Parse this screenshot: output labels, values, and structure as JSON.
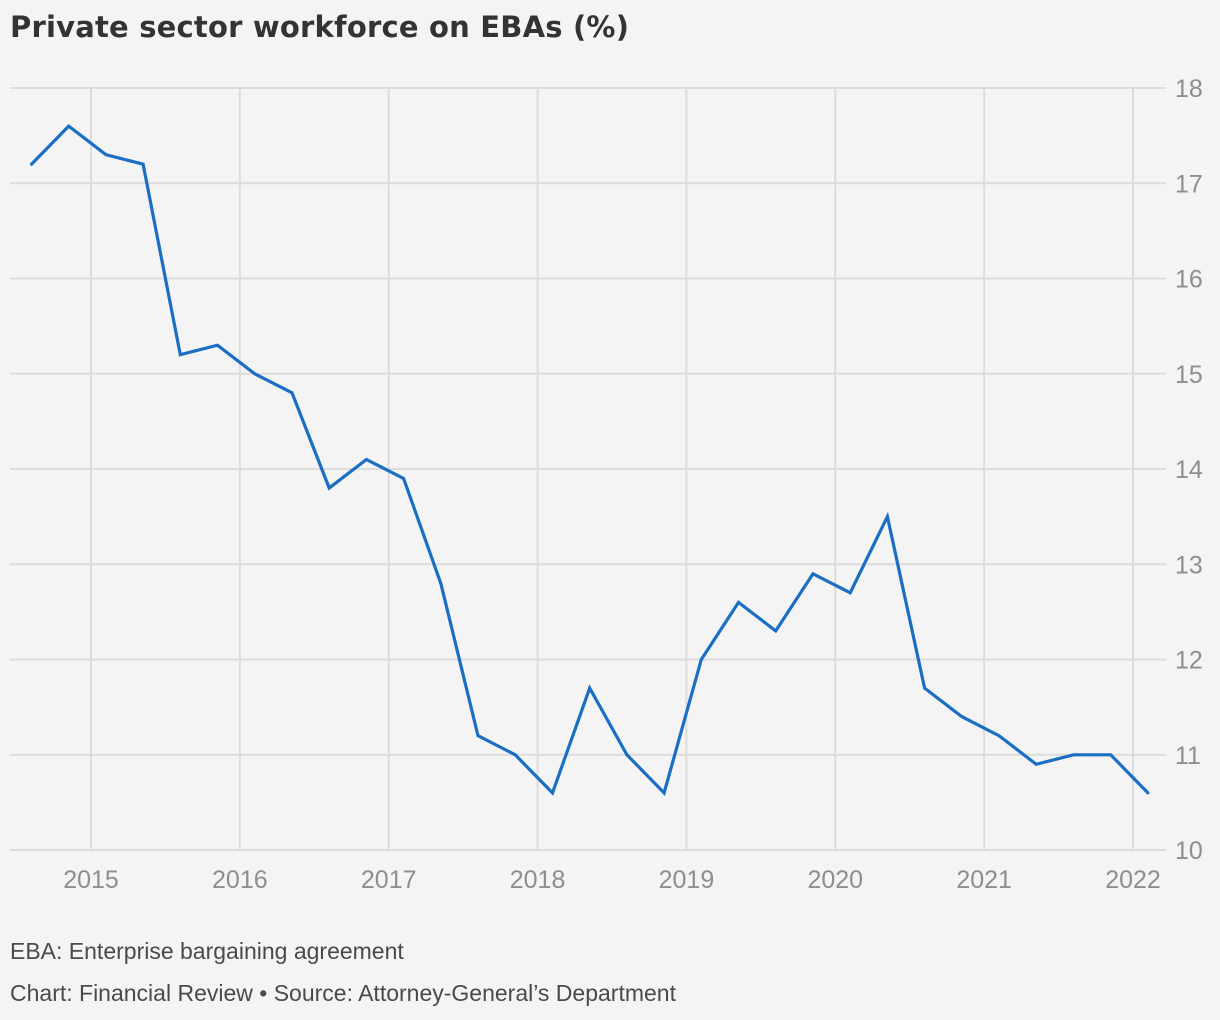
{
  "chart_data": {
    "type": "line",
    "title": "Private sector workforce on EBAs (%)",
    "xlabel": "",
    "ylabel": "",
    "x_axis": {
      "ticks": [
        2015,
        2016,
        2017,
        2018,
        2019,
        2020,
        2021,
        2022
      ],
      "tick_labels": [
        "2015",
        "2016",
        "2017",
        "2018",
        "2019",
        "2020",
        "2021",
        "2022"
      ]
    },
    "y_axis": {
      "ticks": [
        10,
        11,
        12,
        13,
        14,
        15,
        16,
        17,
        18
      ],
      "tick_labels": [
        "10",
        "11",
        "12",
        "13",
        "14",
        "15",
        "16",
        "17",
        "18"
      ],
      "position": "right"
    },
    "ylim": [
      10,
      18
    ],
    "grid": true,
    "legend": "none",
    "line_color": "#1a6ec4",
    "series": [
      {
        "x": [
          2014.6,
          2014.85,
          2015.1,
          2015.35,
          2015.6,
          2015.85,
          2016.1,
          2016.35,
          2016.6,
          2016.85,
          2017.1,
          2017.35,
          2017.6,
          2017.85,
          2018.1,
          2018.35,
          2018.6,
          2018.85,
          2019.1,
          2019.35,
          2019.6,
          2019.85,
          2020.1,
          2020.35,
          2020.6,
          2020.85,
          2021.1,
          2021.35,
          2021.6,
          2021.85,
          2022.1
        ],
        "values": [
          17.2,
          17.6,
          17.3,
          17.2,
          15.2,
          15.3,
          15.0,
          14.8,
          13.8,
          14.1,
          13.9,
          12.8,
          11.2,
          11.0,
          10.6,
          11.7,
          11.0,
          10.6,
          12.0,
          12.6,
          12.3,
          12.9,
          12.7,
          13.5,
          11.7,
          11.4,
          11.2,
          10.9,
          11.0,
          11.0,
          10.6
        ]
      }
    ],
    "notes": [
      "EBA: Enterprise bargaining agreement",
      "Chart: Financial Review • Source: Attorney-General’s Department"
    ]
  }
}
